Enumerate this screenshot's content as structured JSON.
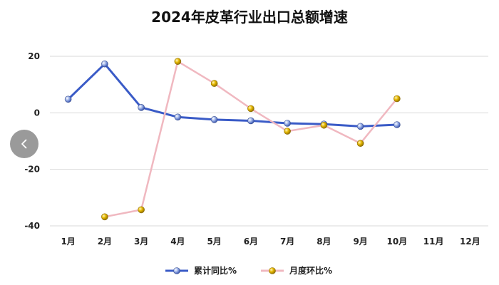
{
  "chart_data": {
    "type": "line",
    "title": "2024年皮革行业出口总额增速",
    "categories": [
      "1月",
      "2月",
      "3月",
      "4月",
      "5月",
      "6月",
      "7月",
      "8月",
      "9月",
      "10月",
      "11月",
      "12月"
    ],
    "series": [
      {
        "name": "累计同比%",
        "color": "#3a5bc7",
        "values": [
          4.8,
          17.3,
          1.9,
          -1.5,
          -2.4,
          -2.8,
          -3.7,
          -4.0,
          -4.8,
          -4.2,
          null,
          null
        ]
      },
      {
        "name": "月度环比%",
        "color": "#f0b8c0",
        "values": [
          null,
          -36.8,
          -34.3,
          18.2,
          10.4,
          1.5,
          -6.5,
          -4.4,
          -10.8,
          5.0,
          null,
          null
        ]
      }
    ],
    "ylim": [
      -40,
      20
    ],
    "yticks": [
      20,
      0,
      -20,
      -40
    ],
    "grid": true,
    "legend_position": "bottom"
  },
  "nav": {
    "prev_icon": "chevron-left-icon"
  }
}
